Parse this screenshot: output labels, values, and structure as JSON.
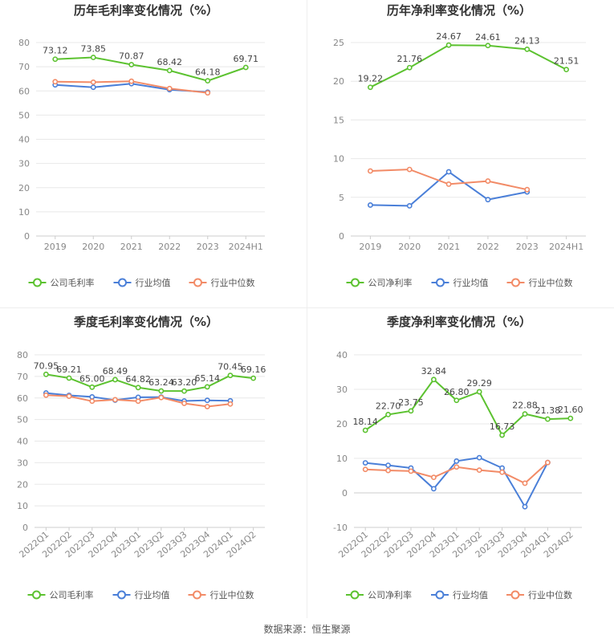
{
  "colors": {
    "company": "#5cc230",
    "industry_avg": "#4a7fd8",
    "industry_median": "#f28b67",
    "grid": "#e8e8e8",
    "axis_text": "#888888",
    "title_text": "#333333",
    "label_text": "#444444"
  },
  "footer": {
    "source": "数据来源：恒生聚源"
  },
  "chart_data": [
    {
      "type": "line",
      "title": "历年毛利率变化情况（%）",
      "categories": [
        "2019",
        "2020",
        "2021",
        "2022",
        "2023",
        "2024H1"
      ],
      "ylim": [
        0,
        80
      ],
      "yticks": [
        0,
        10,
        20,
        30,
        40,
        50,
        60,
        70,
        80
      ],
      "grid": true,
      "legend_position": "bottom",
      "rotate_xlabels": false,
      "series": [
        {
          "name": "公司毛利率",
          "role": "company",
          "values": [
            73.12,
            73.85,
            70.87,
            68.42,
            64.18,
            69.71
          ],
          "labels": [
            "73.12",
            "73.85",
            "70.87",
            "68.42",
            "64.18",
            "69.71"
          ]
        },
        {
          "name": "行业均值",
          "role": "industry_avg",
          "values": [
            62.5,
            61.5,
            63.0,
            60.5,
            59.5,
            null
          ],
          "labels": null
        },
        {
          "name": "行业中位数",
          "role": "industry_median",
          "values": [
            63.8,
            63.6,
            64.0,
            61.0,
            59.2,
            null
          ],
          "labels": null
        }
      ]
    },
    {
      "type": "line",
      "title": "历年净利率变化情况（%）",
      "categories": [
        "2019",
        "2020",
        "2021",
        "2022",
        "2023",
        "2024H1"
      ],
      "ylim": [
        0,
        25
      ],
      "yticks": [
        0,
        5,
        10,
        15,
        20,
        25
      ],
      "grid": true,
      "legend_position": "bottom",
      "rotate_xlabels": false,
      "series": [
        {
          "name": "公司净利率",
          "role": "company",
          "values": [
            19.22,
            21.76,
            24.67,
            24.61,
            24.13,
            21.51
          ],
          "labels": [
            "19.22",
            "21.76",
            "24.67",
            "24.61",
            "24.13",
            "21.51"
          ]
        },
        {
          "name": "行业均值",
          "role": "industry_avg",
          "values": [
            4.0,
            3.9,
            8.3,
            4.7,
            5.7,
            null
          ],
          "labels": null
        },
        {
          "name": "行业中位数",
          "role": "industry_median",
          "values": [
            8.4,
            8.6,
            6.7,
            7.1,
            6.0,
            null
          ],
          "labels": null
        }
      ]
    },
    {
      "type": "line",
      "title": "季度毛利率变化情况（%）",
      "categories": [
        "2022Q1",
        "2022Q2",
        "2022Q3",
        "2022Q4",
        "2023Q1",
        "2023Q2",
        "2023Q3",
        "2023Q4",
        "2024Q1",
        "2024Q2"
      ],
      "ylim": [
        0,
        80
      ],
      "yticks": [
        0,
        10,
        20,
        30,
        40,
        50,
        60,
        70,
        80
      ],
      "grid": true,
      "legend_position": "bottom",
      "rotate_xlabels": true,
      "series": [
        {
          "name": "公司毛利率",
          "role": "company",
          "values": [
            70.95,
            69.21,
            65.0,
            68.49,
            64.82,
            63.24,
            63.2,
            65.14,
            70.45,
            69.16
          ],
          "labels": [
            "70.95",
            "69.21",
            "65.00",
            "68.49",
            "64.82",
            "63.24",
            "63.20",
            "65.14",
            "70.45",
            "69.16"
          ]
        },
        {
          "name": "行业均值",
          "role": "industry_avg",
          "values": [
            62.3,
            61.2,
            60.5,
            59.0,
            60.3,
            60.4,
            58.6,
            58.9,
            58.7,
            null
          ],
          "labels": null
        },
        {
          "name": "行业中位数",
          "role": "industry_median",
          "values": [
            61.3,
            60.8,
            58.5,
            59.2,
            58.5,
            60.2,
            57.5,
            56.0,
            57.2,
            null
          ],
          "labels": null
        }
      ]
    },
    {
      "type": "line",
      "title": "季度净利率变化情况（%）",
      "categories": [
        "2022Q1",
        "2022Q2",
        "2022Q3",
        "2022Q4",
        "2023Q1",
        "2023Q2",
        "2023Q3",
        "2023Q4",
        "2024Q1",
        "2024Q2"
      ],
      "ylim": [
        -10,
        40
      ],
      "yticks": [
        -10,
        0,
        10,
        20,
        30,
        40
      ],
      "grid": true,
      "legend_position": "bottom",
      "rotate_xlabels": true,
      "series": [
        {
          "name": "公司净利率",
          "role": "company",
          "values": [
            18.14,
            22.7,
            23.75,
            32.84,
            26.8,
            29.29,
            16.73,
            22.88,
            21.38,
            21.6
          ],
          "labels": [
            "18.14",
            "22.70",
            "23.75",
            "32.84",
            "26.80",
            "29.29",
            "16.73",
            "22.88",
            "21.38",
            "21.60"
          ]
        },
        {
          "name": "行业均值",
          "role": "industry_avg",
          "values": [
            8.7,
            8.0,
            7.2,
            1.2,
            9.2,
            10.2,
            7.2,
            -4.0,
            8.8,
            null
          ],
          "labels": null
        },
        {
          "name": "行业中位数",
          "role": "industry_median",
          "values": [
            6.8,
            6.5,
            6.3,
            4.5,
            7.5,
            6.6,
            6.0,
            2.8,
            8.8,
            null
          ],
          "labels": null
        }
      ]
    }
  ]
}
